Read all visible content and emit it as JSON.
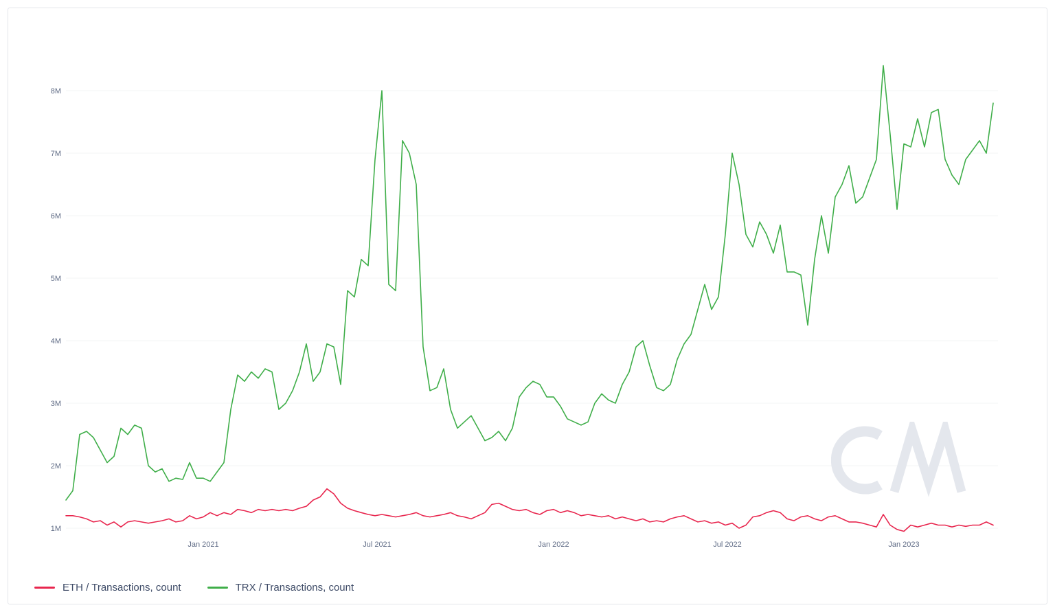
{
  "watermark": {
    "text": "CM"
  },
  "chart_data": {
    "type": "line",
    "title": "",
    "xlabel": "",
    "ylabel": "Transactions, count",
    "ylim": [
      1,
      8
    ],
    "grid": "horizontal",
    "legend_position": "bottom-left",
    "x_axis": {
      "ticks": [
        {
          "label": "Jan 2021",
          "index": 20
        },
        {
          "label": "Jul 2021",
          "index": 45.3
        },
        {
          "label": "Jan 2022",
          "index": 71
        },
        {
          "label": "Jul 2022",
          "index": 96.3
        },
        {
          "label": "Jan 2023",
          "index": 122
        }
      ]
    },
    "y_axis": {
      "ticks": [
        {
          "label": "1M",
          "value": 1
        },
        {
          "label": "2M",
          "value": 2
        },
        {
          "label": "3M",
          "value": 3
        },
        {
          "label": "4M",
          "value": 4
        },
        {
          "label": "5M",
          "value": 5
        },
        {
          "label": "6M",
          "value": 6
        },
        {
          "label": "7M",
          "value": 7
        },
        {
          "label": "8M",
          "value": 8
        }
      ]
    },
    "series": [
      {
        "name": "ETH / Transactions, count",
        "color": "#e8264e",
        "unit": "millions",
        "values": [
          1.2,
          1.2,
          1.18,
          1.15,
          1.1,
          1.12,
          1.05,
          1.1,
          1.02,
          1.1,
          1.12,
          1.1,
          1.08,
          1.1,
          1.12,
          1.15,
          1.1,
          1.12,
          1.2,
          1.15,
          1.18,
          1.25,
          1.2,
          1.25,
          1.22,
          1.3,
          1.28,
          1.25,
          1.3,
          1.28,
          1.3,
          1.28,
          1.3,
          1.28,
          1.32,
          1.35,
          1.45,
          1.5,
          1.63,
          1.55,
          1.4,
          1.32,
          1.28,
          1.25,
          1.22,
          1.2,
          1.22,
          1.2,
          1.18,
          1.2,
          1.22,
          1.25,
          1.2,
          1.18,
          1.2,
          1.22,
          1.25,
          1.2,
          1.18,
          1.15,
          1.2,
          1.25,
          1.38,
          1.4,
          1.35,
          1.3,
          1.28,
          1.3,
          1.25,
          1.22,
          1.28,
          1.3,
          1.25,
          1.28,
          1.25,
          1.2,
          1.22,
          1.2,
          1.18,
          1.2,
          1.15,
          1.18,
          1.15,
          1.12,
          1.15,
          1.1,
          1.12,
          1.1,
          1.15,
          1.18,
          1.2,
          1.15,
          1.1,
          1.12,
          1.08,
          1.1,
          1.05,
          1.08,
          1.0,
          1.05,
          1.18,
          1.2,
          1.25,
          1.28,
          1.25,
          1.15,
          1.12,
          1.18,
          1.2,
          1.15,
          1.12,
          1.18,
          1.2,
          1.15,
          1.1,
          1.1,
          1.08,
          1.05,
          1.02,
          1.22,
          1.05,
          0.98,
          0.95,
          1.05,
          1.02,
          1.05,
          1.08,
          1.05,
          1.05,
          1.02,
          1.05,
          1.03,
          1.05,
          1.05,
          1.1,
          1.05
        ]
      },
      {
        "name": "TRX / Transactions, count",
        "color": "#3fae49",
        "unit": "millions",
        "values": [
          1.45,
          1.6,
          2.5,
          2.55,
          2.45,
          2.25,
          2.05,
          2.15,
          2.6,
          2.5,
          2.65,
          2.6,
          2.0,
          1.9,
          1.95,
          1.75,
          1.8,
          1.78,
          2.05,
          1.8,
          1.8,
          1.75,
          1.9,
          2.05,
          2.9,
          3.45,
          3.35,
          3.5,
          3.4,
          3.55,
          3.5,
          2.9,
          3.0,
          3.2,
          3.5,
          3.95,
          3.35,
          3.5,
          3.95,
          3.9,
          3.3,
          4.8,
          4.7,
          5.3,
          5.2,
          6.9,
          8.0,
          4.9,
          4.8,
          7.2,
          7.0,
          6.5,
          3.9,
          3.2,
          3.25,
          3.55,
          2.9,
          2.6,
          2.7,
          2.8,
          2.6,
          2.4,
          2.45,
          2.55,
          2.4,
          2.6,
          3.1,
          3.25,
          3.35,
          3.3,
          3.1,
          3.1,
          2.95,
          2.75,
          2.7,
          2.65,
          2.7,
          3.0,
          3.15,
          3.05,
          3.0,
          3.3,
          3.5,
          3.9,
          4.0,
          3.6,
          3.25,
          3.2,
          3.3,
          3.7,
          3.95,
          4.1,
          4.5,
          4.9,
          4.5,
          4.7,
          5.7,
          7.0,
          6.5,
          5.7,
          5.5,
          5.9,
          5.7,
          5.4,
          5.85,
          5.1,
          5.1,
          5.05,
          4.25,
          5.3,
          6.0,
          5.4,
          6.3,
          6.5,
          6.8,
          6.2,
          6.3,
          6.6,
          6.9,
          8.4,
          7.3,
          6.1,
          7.15,
          7.1,
          7.55,
          7.1,
          7.65,
          7.7,
          6.9,
          6.65,
          6.5,
          6.9,
          7.05,
          7.2,
          7.0,
          7.8
        ]
      }
    ]
  }
}
